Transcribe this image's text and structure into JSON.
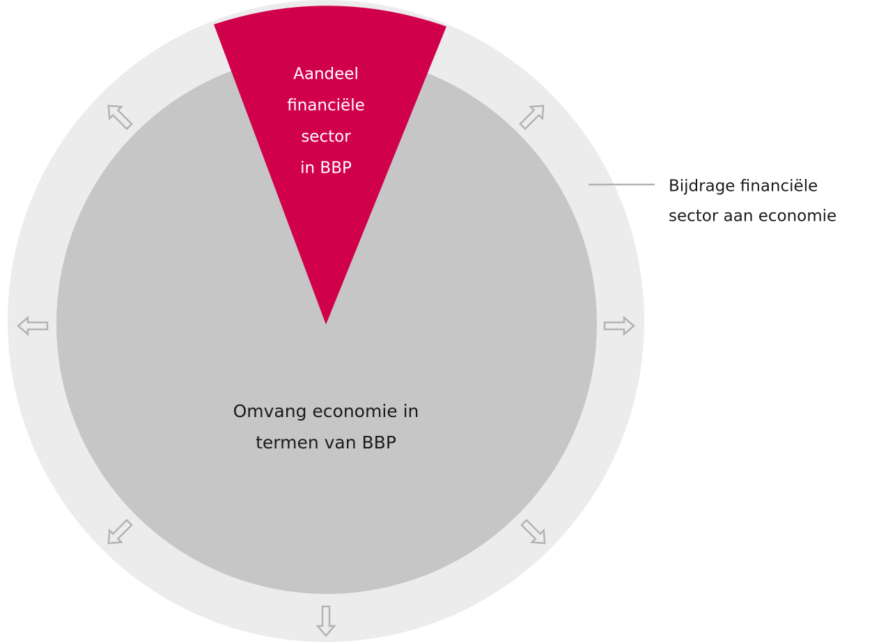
{
  "wedge_label": [
    "Aandeel",
    "financiële",
    "sector",
    "in BBP"
  ],
  "center_label": [
    "Omvang economie in",
    "termen van BBP"
  ],
  "side_label": [
    "Bijdrage financiële",
    "sector aan economie"
  ]
}
